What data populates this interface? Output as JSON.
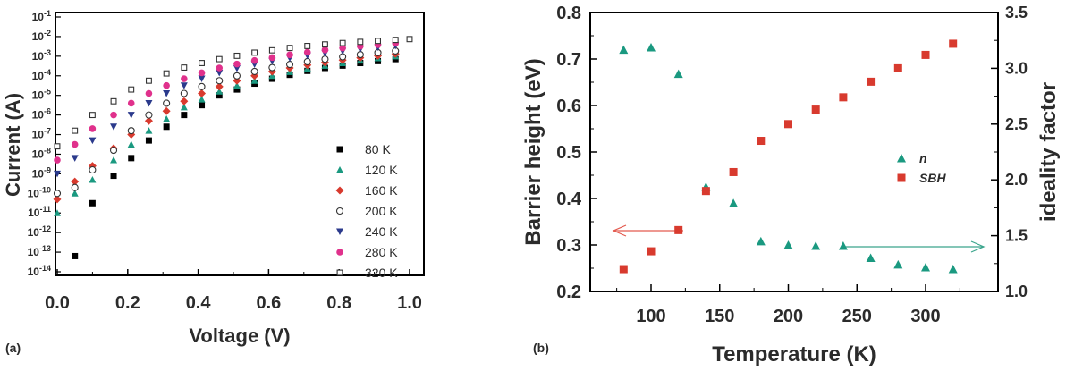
{
  "figure": {
    "label_a": "(a)",
    "label_b": "(b)"
  },
  "chart_data": [
    {
      "type": "scatter",
      "panel": "a",
      "xlabel": "Voltage (V)",
      "ylabel": "Current (A)",
      "xlim": [
        0.0,
        1.05
      ],
      "ylim_log10": [
        -14,
        -1
      ],
      "yscale": "log",
      "xticks": [
        "0.0",
        "0.2",
        "0.4",
        "0.6",
        "0.8",
        "1.0"
      ],
      "yticks": [
        "10-1",
        "10-2",
        "10-3",
        "10-4",
        "10-5",
        "10-6",
        "10-7",
        "10-8",
        "10-9",
        "10-10",
        "10-11",
        "10-12",
        "10-13",
        "10-14"
      ],
      "legend_position": "lower-right",
      "series": [
        {
          "name": "80 K",
          "marker": "square",
          "color": "#000000",
          "x": [
            0.05,
            0.1,
            0.16,
            0.21,
            0.26,
            0.31,
            0.36,
            0.41,
            0.46,
            0.51,
            0.56,
            0.61,
            0.66,
            0.71,
            0.76,
            0.81,
            0.86,
            0.91,
            0.96
          ],
          "log10_y": [
            -13.2,
            -10.5,
            -9.1,
            -8.2,
            -7.3,
            -6.6,
            -6.0,
            -5.5,
            -5.0,
            -4.7,
            -4.4,
            -4.15,
            -3.95,
            -3.75,
            -3.6,
            -3.48,
            -3.35,
            -3.25,
            -3.15
          ]
        },
        {
          "name": "120 K",
          "marker": "triangle",
          "color": "#1a9980",
          "x": [
            0.0,
            0.05,
            0.1,
            0.16,
            0.21,
            0.26,
            0.31,
            0.36,
            0.41,
            0.46,
            0.51,
            0.56,
            0.61,
            0.66,
            0.71,
            0.76,
            0.81,
            0.86,
            0.91,
            0.96
          ],
          "log10_y": [
            -11.0,
            -10.0,
            -9.3,
            -8.3,
            -7.5,
            -6.8,
            -6.2,
            -5.6,
            -5.2,
            -4.8,
            -4.5,
            -4.25,
            -4.0,
            -3.8,
            -3.62,
            -3.48,
            -3.35,
            -3.22,
            -3.1,
            -3.0
          ]
        },
        {
          "name": "160 K",
          "marker": "diamond",
          "color": "#d83a2e",
          "x": [
            0.0,
            0.05,
            0.1,
            0.16,
            0.21,
            0.26,
            0.31,
            0.36,
            0.41,
            0.46,
            0.51,
            0.56,
            0.61,
            0.66,
            0.71,
            0.76,
            0.81,
            0.86,
            0.91,
            0.96
          ],
          "log10_y": [
            -10.3,
            -9.4,
            -8.6,
            -7.7,
            -7.0,
            -6.3,
            -5.8,
            -5.3,
            -4.9,
            -4.55,
            -4.25,
            -4.0,
            -3.78,
            -3.6,
            -3.45,
            -3.32,
            -3.2,
            -3.08,
            -2.98,
            -2.88
          ]
        },
        {
          "name": "200 K",
          "marker": "circle-open",
          "color": "#333333",
          "x": [
            0.0,
            0.05,
            0.1,
            0.16,
            0.21,
            0.26,
            0.31,
            0.36,
            0.41,
            0.46,
            0.51,
            0.56,
            0.61,
            0.66,
            0.71,
            0.76,
            0.81,
            0.86,
            0.91,
            0.96
          ],
          "log10_y": [
            -10.0,
            -9.7,
            -8.8,
            -7.8,
            -6.8,
            -6.0,
            -5.4,
            -4.9,
            -4.55,
            -4.25,
            -4.0,
            -3.78,
            -3.58,
            -3.42,
            -3.28,
            -3.15,
            -3.03,
            -2.92,
            -2.82,
            -2.73
          ]
        },
        {
          "name": "240 K",
          "marker": "triangle-down",
          "color": "#2b3a8c",
          "x": [
            0.0,
            0.05,
            0.1,
            0.16,
            0.21,
            0.26,
            0.31,
            0.36,
            0.41,
            0.46,
            0.51,
            0.56,
            0.61,
            0.66,
            0.71,
            0.76,
            0.81,
            0.86,
            0.91,
            0.96
          ],
          "log10_y": [
            -9.0,
            -8.2,
            -7.3,
            -6.6,
            -6.0,
            -5.4,
            -4.9,
            -4.5,
            -4.15,
            -3.85,
            -3.62,
            -3.42,
            -3.25,
            -3.1,
            -2.97,
            -2.85,
            -2.74,
            -2.64,
            -2.55,
            -2.47
          ]
        },
        {
          "name": "280 K",
          "marker": "circle",
          "color": "#e0318c",
          "x": [
            0.0,
            0.05,
            0.1,
            0.16,
            0.21,
            0.26,
            0.31,
            0.36,
            0.41,
            0.46,
            0.51,
            0.56,
            0.61,
            0.66,
            0.71,
            0.76,
            0.81,
            0.86,
            0.91,
            0.96
          ],
          "log10_y": [
            -8.3,
            -7.5,
            -6.7,
            -6.0,
            -5.4,
            -4.9,
            -4.5,
            -4.15,
            -3.85,
            -3.6,
            -3.4,
            -3.22,
            -3.07,
            -2.93,
            -2.8,
            -2.68,
            -2.58,
            -2.49,
            -2.41,
            -2.34
          ]
        },
        {
          "name": "320 K",
          "marker": "square-open",
          "color": "#333333",
          "x": [
            0.0,
            0.05,
            0.1,
            0.16,
            0.21,
            0.26,
            0.31,
            0.36,
            0.41,
            0.46,
            0.51,
            0.56,
            0.61,
            0.66,
            0.71,
            0.76,
            0.81,
            0.86,
            0.91,
            0.96,
            1.0
          ],
          "log10_y": [
            -7.6,
            -6.8,
            -6.0,
            -5.3,
            -4.7,
            -4.25,
            -3.88,
            -3.58,
            -3.35,
            -3.15,
            -2.98,
            -2.82,
            -2.7,
            -2.58,
            -2.48,
            -2.4,
            -2.33,
            -2.27,
            -2.22,
            -2.17,
            -2.13
          ]
        }
      ]
    },
    {
      "type": "scatter",
      "panel": "b",
      "xlabel": "Temperature (K)",
      "ylabel": "Barrier height (eV)",
      "y2label": "ideality factor",
      "xlim": [
        60,
        335
      ],
      "ylim": [
        0.2,
        0.8
      ],
      "y2lim": [
        1.0,
        3.5
      ],
      "xticks": [
        "100",
        "150",
        "200",
        "250",
        "300"
      ],
      "yticks": [
        "0.2",
        "0.3",
        "0.4",
        "0.5",
        "0.6",
        "0.7",
        "0.8"
      ],
      "y2ticks": [
        "1.0",
        "1.5",
        "2.0",
        "2.5",
        "3.0",
        "3.5"
      ],
      "legend_position": "right",
      "series": [
        {
          "name": "n",
          "marker": "triangle",
          "color": "#1a9980",
          "axis": "left",
          "x": [
            80,
            100,
            120,
            140,
            160,
            180,
            200,
            220,
            240,
            260,
            280,
            300,
            320
          ],
          "y": [
            0.72,
            0.725,
            0.668,
            0.425,
            0.39,
            0.308,
            0.3,
            0.298,
            0.298,
            0.272,
            0.258,
            0.252,
            0.248
          ]
        },
        {
          "name": "SBH",
          "marker": "square",
          "color": "#d83a2e",
          "axis": "right",
          "x": [
            80,
            100,
            120,
            140,
            160,
            180,
            200,
            220,
            240,
            260,
            280,
            300,
            320
          ],
          "y": [
            1.2,
            1.36,
            1.55,
            1.9,
            2.07,
            2.35,
            2.5,
            2.63,
            2.74,
            2.88,
            3.0,
            3.12,
            3.22
          ]
        }
      ]
    }
  ]
}
